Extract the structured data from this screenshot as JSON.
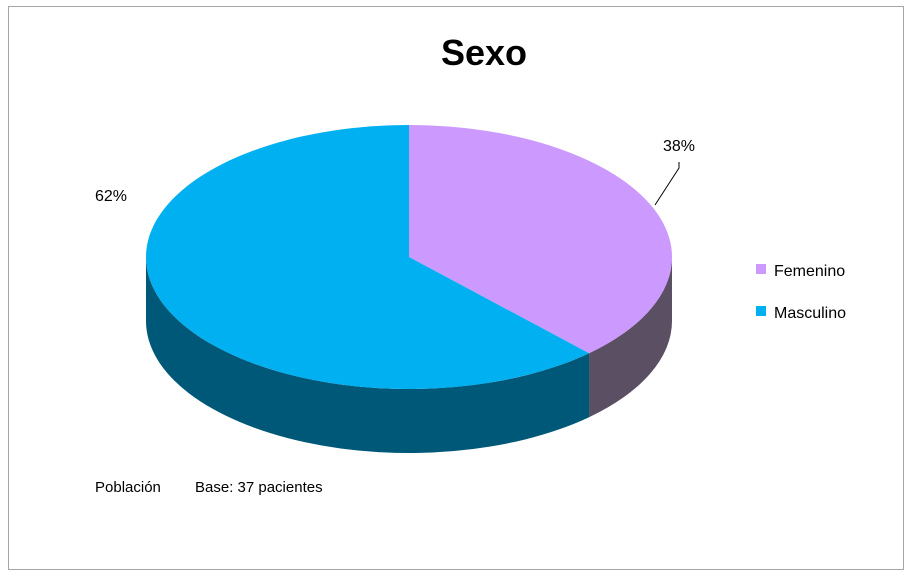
{
  "chart_data": {
    "type": "pie",
    "title": "Sexo",
    "categories": [
      "Femenino",
      "Masculino"
    ],
    "values": [
      38,
      62
    ],
    "data_labels": [
      "38%",
      "62%"
    ],
    "colors": {
      "Femenino": {
        "top": "#cc99ff",
        "side": "#5b4f63"
      },
      "Masculino": {
        "top": "#00b0f0",
        "side": "#005878"
      }
    },
    "legend_position": "right",
    "three_d": true
  },
  "footnote": {
    "label": "Población",
    "value": "Base: 37 pacientes"
  }
}
